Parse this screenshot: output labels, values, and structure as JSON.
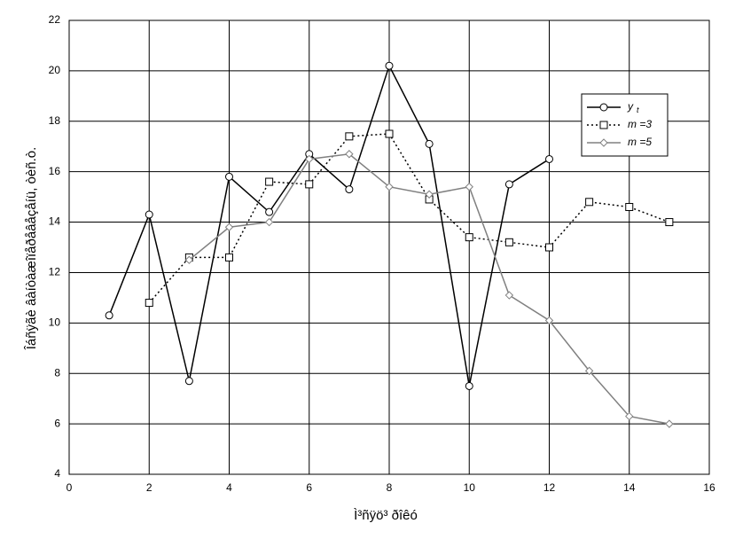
{
  "chart_data": {
    "type": "line",
    "xlabel": "Ì³ñÿö³ ðîêó",
    "ylabel": "Îáñÿãè âàíòàæîïåðåâåçåíü, òèñ.ò.",
    "xlim": [
      0,
      16
    ],
    "xticks": [
      0,
      2,
      4,
      6,
      8,
      10,
      12,
      14,
      16
    ],
    "ylim": [
      4,
      22
    ],
    "yticks": [
      4,
      6,
      8,
      10,
      12,
      14,
      16,
      18,
      20,
      22
    ],
    "grid": true,
    "series": [
      {
        "name": "y",
        "subscript": "t",
        "color": "#000000",
        "dash": "solid",
        "marker": "circle",
        "x": [
          1,
          2,
          3,
          4,
          5,
          6,
          7,
          8,
          9,
          10,
          11,
          12
        ],
        "values": [
          10.3,
          14.3,
          7.7,
          15.8,
          14.4,
          16.7,
          15.3,
          20.2,
          17.1,
          7.5,
          15.5,
          16.5
        ]
      },
      {
        "name": "m =3",
        "color": "#000000",
        "dash": "dotted",
        "marker": "square",
        "x": [
          2,
          3,
          4,
          5,
          6,
          7,
          8,
          9,
          10,
          11,
          12,
          13,
          14,
          15
        ],
        "values": [
          10.8,
          12.6,
          12.6,
          15.6,
          15.5,
          17.4,
          17.5,
          14.9,
          13.4,
          13.2,
          13.0,
          14.8,
          14.6,
          14.0
        ]
      },
      {
        "name": "m =5",
        "color": "#808080",
        "dash": "solid",
        "marker": "diamond",
        "x": [
          3,
          4,
          5,
          6,
          7,
          8,
          9,
          10,
          11,
          12,
          13,
          14,
          15
        ],
        "values": [
          12.5,
          13.8,
          14.0,
          16.5,
          16.7,
          15.4,
          15.1,
          15.4,
          11.1,
          10.1,
          8.1,
          6.3,
          6.0
        ]
      }
    ]
  }
}
